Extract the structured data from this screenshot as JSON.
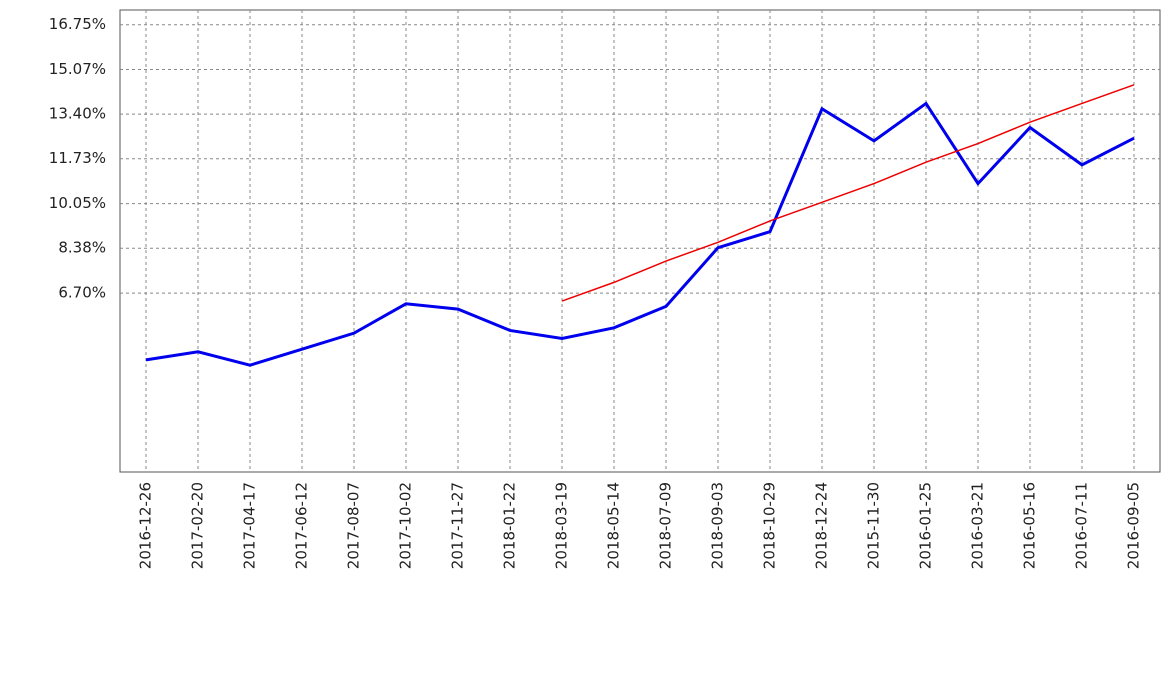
{
  "chart_data": {
    "type": "line",
    "categories": [
      "2016-12-26",
      "2017-02-20",
      "2017-04-17",
      "2017-06-12",
      "2017-08-07",
      "2017-10-02",
      "2017-11-27",
      "2018-01-22",
      "2018-03-19",
      "2018-05-14",
      "2018-07-09",
      "2018-09-03",
      "2018-10-29",
      "2018-12-24",
      "2015-11-30",
      "2016-01-25",
      "2016-03-21",
      "2016-05-16",
      "2016-07-11",
      "2016-09-05"
    ],
    "series": [
      {
        "color": "#0000ee",
        "values": [
          4.2,
          4.5,
          4.0,
          4.6,
          5.2,
          6.3,
          6.1,
          5.3,
          5.0,
          5.4,
          6.2,
          8.4,
          9.0,
          13.6,
          12.4,
          13.8,
          10.8,
          12.9,
          11.5,
          12.5
        ]
      },
      {
        "color": "#ee0000",
        "values": [
          null,
          null,
          null,
          null,
          null,
          null,
          null,
          null,
          6.4,
          7.1,
          7.9,
          8.6,
          9.4,
          10.1,
          10.8,
          11.6,
          12.3,
          13.1,
          13.8,
          14.5
        ]
      }
    ],
    "ylim": [
      0,
      17.3
    ],
    "yticks": [
      {
        "value": 6.7,
        "label": "6.70%"
      },
      {
        "value": 8.38,
        "label": "8.38%"
      },
      {
        "value": 10.05,
        "label": "10.05%"
      },
      {
        "value": 11.73,
        "label": "11.73%"
      },
      {
        "value": 13.4,
        "label": "13.40%"
      },
      {
        "value": 15.07,
        "label": "15.07%"
      },
      {
        "value": 16.75,
        "label": "16.75%"
      }
    ],
    "grid": true
  }
}
